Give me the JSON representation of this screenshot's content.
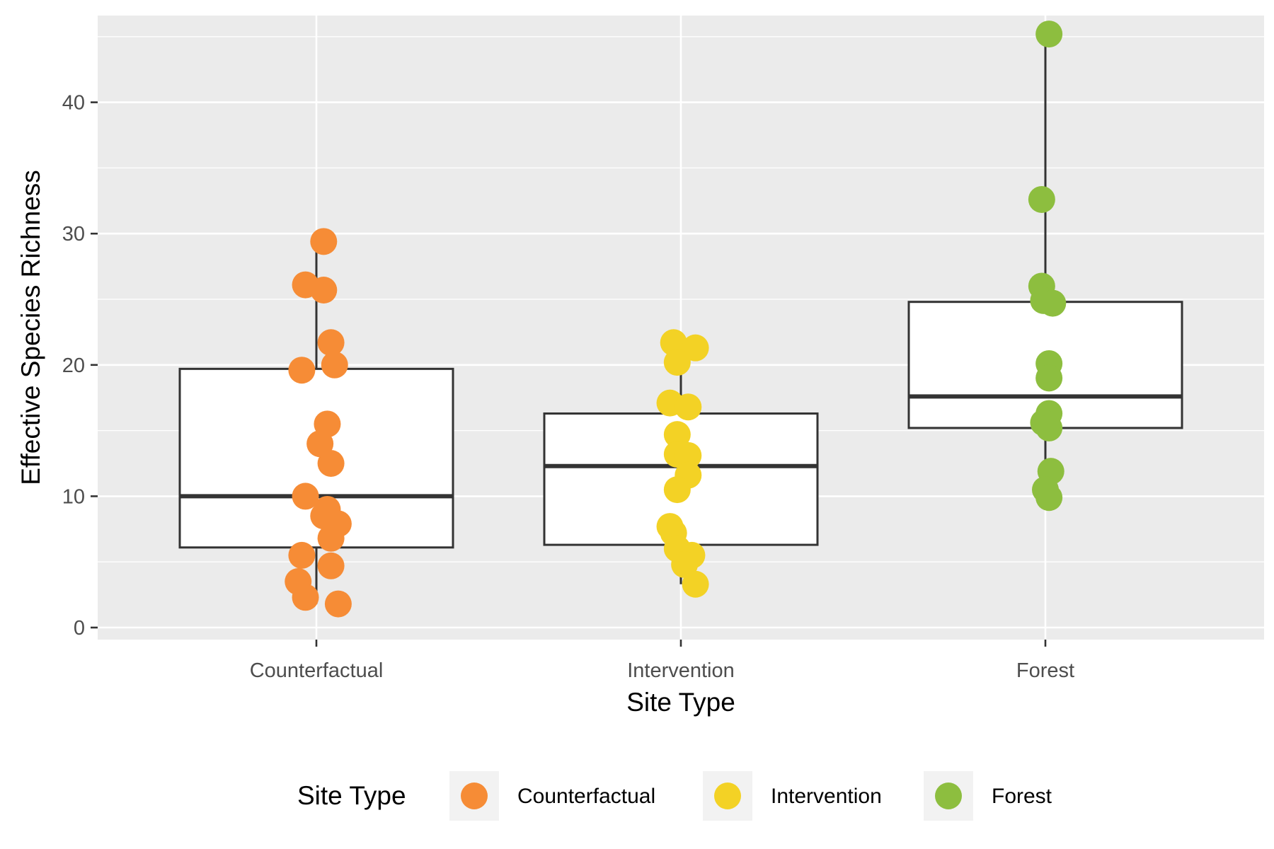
{
  "chart_data": {
    "type": "box",
    "title": "",
    "xlabel": "Site Type",
    "ylabel": "Effective Species Richness",
    "ylim": [
      -0.5,
      47
    ],
    "yticks": [
      "0",
      "10",
      "20",
      "30",
      "40"
    ],
    "grid": true,
    "legend": {
      "title": "Site Type",
      "placement": "bottom"
    },
    "categories": [
      "Counterfactual",
      "Intervention",
      "Forest"
    ],
    "series": [
      {
        "name": "Counterfactual",
        "color": "#F68C36",
        "box": {
          "min": 1.8,
          "q1": 6.1,
          "median": 10.0,
          "q3": 19.7,
          "max": 29.4
        },
        "points": [
          29.4,
          26.1,
          25.7,
          21.7,
          20.0,
          19.6,
          15.5,
          14.0,
          12.5,
          10.0,
          9.0,
          8.5,
          7.9,
          6.8,
          5.5,
          4.7,
          3.5,
          2.3,
          1.8
        ],
        "jitter": [
          0.02,
          -0.03,
          0.02,
          0.04,
          0.05,
          -0.04,
          0.03,
          0.01,
          0.04,
          -0.03,
          0.03,
          0.02,
          0.06,
          0.04,
          -0.04,
          0.04,
          -0.05,
          -0.03,
          0.06
        ]
      },
      {
        "name": "Intervention",
        "color": "#F3D225",
        "box": {
          "min": 3.3,
          "q1": 6.3,
          "median": 12.3,
          "q3": 16.3,
          "max": 21.7
        },
        "points": [
          21.7,
          21.3,
          20.2,
          17.1,
          16.8,
          14.7,
          13.2,
          13.1,
          11.6,
          10.5,
          7.7,
          7.2,
          6.0,
          5.5,
          4.8,
          3.3
        ],
        "jitter": [
          -0.02,
          0.04,
          -0.01,
          -0.03,
          0.02,
          -0.01,
          -0.01,
          0.02,
          0.02,
          -0.01,
          -0.03,
          -0.02,
          -0.01,
          0.03,
          0.01,
          0.04
        ]
      },
      {
        "name": "Forest",
        "color": "#8DBE3F",
        "box": {
          "min": 9.9,
          "q1": 15.2,
          "median": 17.6,
          "q3": 24.8,
          "max": 45.2
        },
        "points": [
          45.2,
          32.6,
          26.0,
          24.9,
          24.7,
          20.1,
          19.0,
          16.3,
          15.6,
          15.2,
          11.9,
          10.5,
          9.9
        ],
        "jitter": [
          0.01,
          -0.01,
          -0.01,
          -0.005,
          0.02,
          0.01,
          0.01,
          0.01,
          -0.005,
          0.01,
          0.015,
          0.0,
          0.01
        ]
      }
    ]
  }
}
